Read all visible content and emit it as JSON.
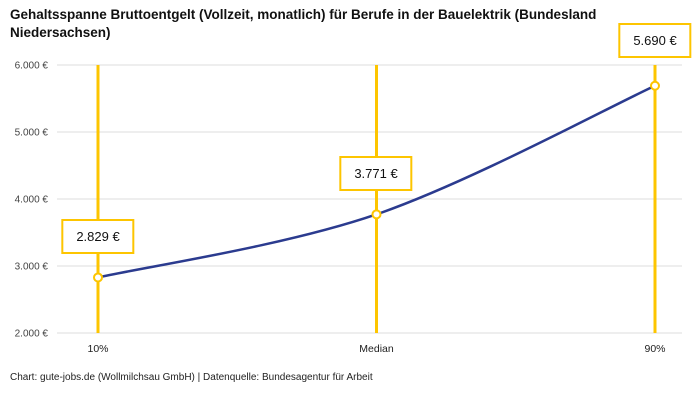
{
  "title": "Gehaltsspanne Bruttoentgelt (Vollzeit, monatlich) für Berufe in der Bauelektrik (Bundesland Niedersachsen)",
  "footer": "Chart: gute-jobs.de (Wollmilchsau GmbH) | Datenquelle: Bundesagentur für Arbeit",
  "colors": {
    "accent_yellow": "#fdc500",
    "line_blue": "#2b3b8f",
    "grid": "#dcdcdc",
    "tick_text": "#444444",
    "axis_text": "#222222"
  },
  "chart_data": {
    "type": "line",
    "title": "Gehaltsspanne Bruttoentgelt (Vollzeit, monatlich) für Berufe in der Bauelektrik (Bundesland Niedersachsen)",
    "categories": [
      "10%",
      "Median",
      "90%"
    ],
    "values": [
      2829,
      3771,
      5690
    ],
    "points": [
      {
        "category": "10%",
        "value": 2829,
        "label": "2.829 €"
      },
      {
        "category": "Median",
        "value": 3771,
        "label": "3.771 €"
      },
      {
        "category": "90%",
        "value": 5690,
        "label": "5.690 €"
      }
    ],
    "ylim": [
      2000,
      6000
    ],
    "ytick_step": 1000,
    "ytick_labels": [
      "2.000 €",
      "3.000 €",
      "4.000 €",
      "5.000 €",
      "6.000 €"
    ],
    "xlabel": "",
    "ylabel": "",
    "grid": true,
    "legend": "none",
    "source": "Chart: gute-jobs.de (Wollmilchsau GmbH) | Datenquelle: Bundesagentur für Arbeit"
  }
}
